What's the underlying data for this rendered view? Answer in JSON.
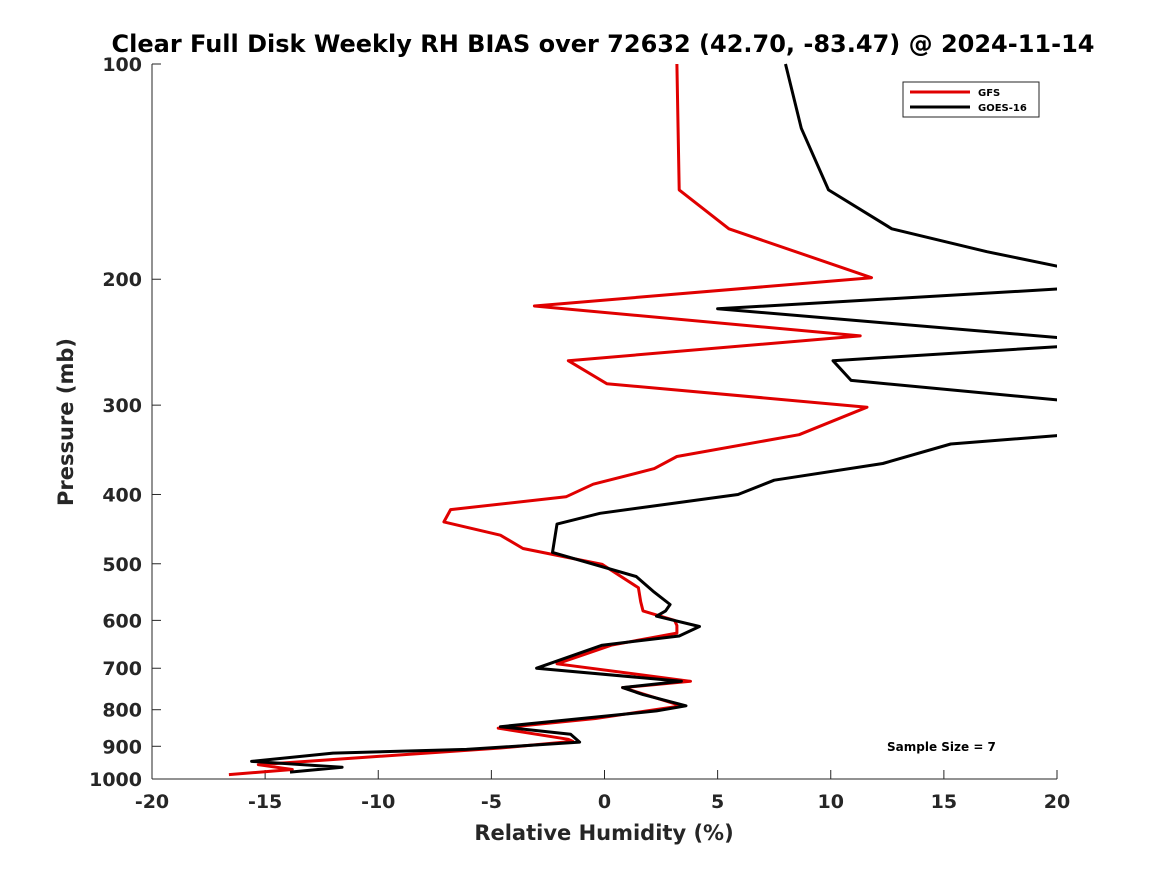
{
  "chart_data": {
    "type": "line",
    "title": "Clear Full Disk Weekly RH BIAS over 72632 (42.70, -83.47) @ 2024-11-14",
    "xlabel": "Relative Humidity (%)",
    "ylabel": "Pressure (mb)",
    "xlim": [
      -20,
      20
    ],
    "ylim": [
      100,
      1000
    ],
    "y_scale": "log",
    "y_reversed": true,
    "x_ticks": [
      "-20",
      "-15",
      "-10",
      "-5",
      "0",
      "5",
      "10",
      "15",
      "20"
    ],
    "y_ticks": [
      "100",
      "200",
      "300",
      "400",
      "500",
      "600",
      "700",
      "800",
      "900",
      "1000"
    ],
    "grid": false,
    "legend_position": "top-right",
    "annotation": "Sample Size = 7",
    "series": [
      {
        "name": "GFS",
        "color": "#e00000",
        "points": [
          [
            3.2,
            100
          ],
          [
            3.3,
            150
          ],
          [
            5.5,
            170
          ],
          [
            11.8,
            199
          ],
          [
            -3.1,
            218
          ],
          [
            11.3,
            240
          ],
          [
            -1.6,
            260
          ],
          [
            0.1,
            280
          ],
          [
            11.6,
            302
          ],
          [
            8.6,
            330
          ],
          [
            3.2,
            354
          ],
          [
            2.2,
            368
          ],
          [
            -0.5,
            387
          ],
          [
            -1.7,
            403
          ],
          [
            -6.8,
            420
          ],
          [
            -7.1,
            437
          ],
          [
            -4.6,
            456
          ],
          [
            -3.6,
            476
          ],
          [
            -0.1,
            501
          ],
          [
            1.5,
            540
          ],
          [
            1.6,
            565
          ],
          [
            1.7,
            582
          ],
          [
            3.1,
            600
          ],
          [
            3.2,
            610
          ],
          [
            3.2,
            625
          ],
          [
            0.3,
            650
          ],
          [
            -2.1,
            690
          ],
          [
            3.8,
            730
          ],
          [
            0.8,
            745
          ],
          [
            3.4,
            790
          ],
          [
            -0.4,
            823
          ],
          [
            -4.7,
            849
          ],
          [
            -1.6,
            880
          ],
          [
            -1.4,
            886
          ],
          [
            -4.6,
            905
          ],
          [
            -15.3,
            955
          ],
          [
            -13.8,
            970
          ],
          [
            -16.6,
            986
          ]
        ]
      },
      {
        "name": "GOES-16",
        "color": "#000000",
        "points": [
          [
            8.0,
            100
          ],
          [
            8.7,
            123
          ],
          [
            9.9,
            150
          ],
          [
            12.7,
            170
          ],
          [
            16.9,
            183
          ],
          [
            20.1,
            192
          ],
          [
            20.5,
            206
          ],
          [
            5.0,
            220
          ],
          [
            20.5,
            242
          ],
          [
            20.5,
            248
          ],
          [
            10.1,
            260
          ],
          [
            10.9,
            277
          ],
          [
            20.5,
            296
          ],
          [
            20.5,
            330
          ],
          [
            15.3,
            340
          ],
          [
            12.3,
            362
          ],
          [
            7.5,
            382
          ],
          [
            5.9,
            400
          ],
          [
            -0.2,
            425
          ],
          [
            -2.1,
            440
          ],
          [
            -2.3,
            482
          ],
          [
            1.4,
            521
          ],
          [
            2.2,
            548
          ],
          [
            2.9,
            570
          ],
          [
            2.7,
            582
          ],
          [
            2.3,
            592
          ],
          [
            4.2,
            612
          ],
          [
            3.3,
            631
          ],
          [
            -0.1,
            650
          ],
          [
            -3.0,
            700
          ],
          [
            3.4,
            730
          ],
          [
            0.8,
            745
          ],
          [
            1.7,
            762
          ],
          [
            3.6,
            790
          ],
          [
            2.3,
            803
          ],
          [
            -4.6,
            845
          ],
          [
            -1.5,
            866
          ],
          [
            -1.1,
            888
          ],
          [
            -6.1,
            909
          ],
          [
            -12.0,
            920
          ],
          [
            -15.6,
            945
          ],
          [
            -11.6,
            963
          ],
          [
            -13.9,
            978
          ]
        ]
      }
    ]
  }
}
